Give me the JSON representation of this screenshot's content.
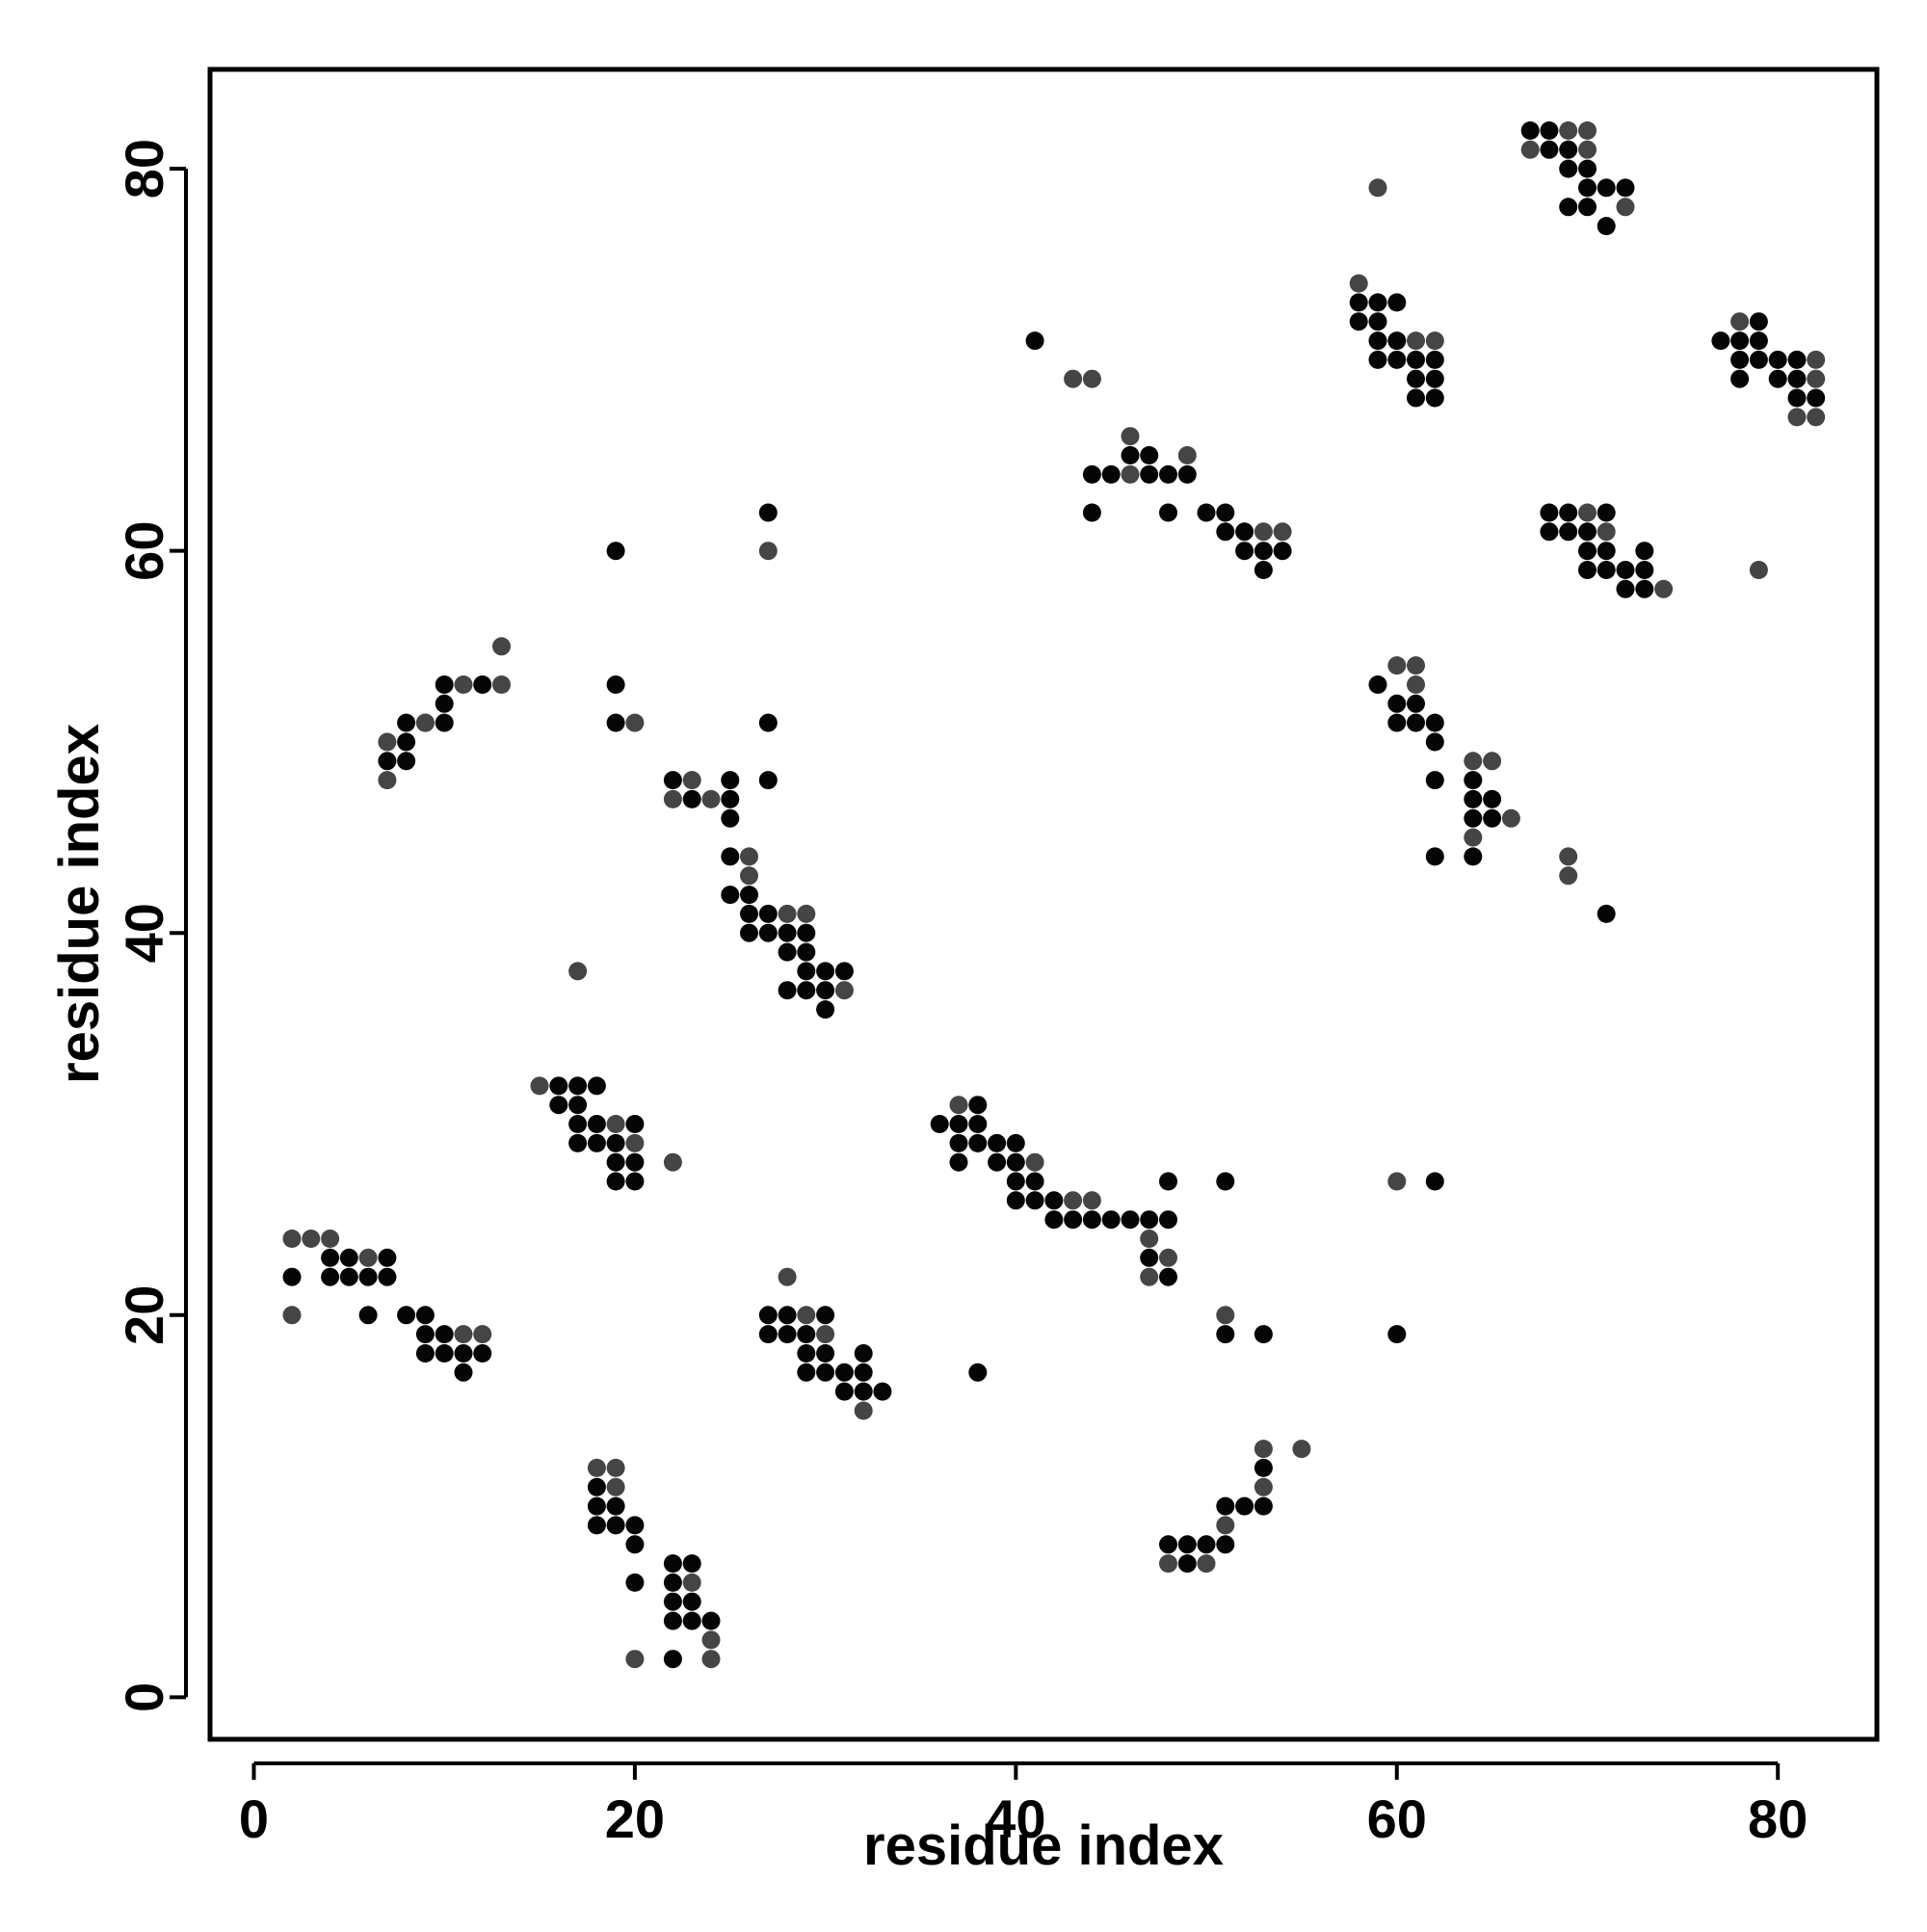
{
  "chart_data": {
    "type": "scatter",
    "title": "",
    "xlabel": "residue index",
    "ylabel": "residue index",
    "xlim": [
      -2.3,
      85.2
    ],
    "ylim": [
      -2.2,
      85.2
    ],
    "x_ticks": [
      0,
      20,
      40,
      60,
      80
    ],
    "y_ticks": [
      0,
      20,
      40,
      60,
      80
    ],
    "grid": false,
    "legend": "none",
    "colors": {
      "dark": "#050505",
      "mid": "#454545"
    },
    "series": [
      {
        "color_key": "dark",
        "points": [
          [
            2,
            22
          ],
          [
            4,
            22
          ],
          [
            4,
            23
          ],
          [
            5,
            23
          ],
          [
            5,
            22
          ],
          [
            6,
            22
          ],
          [
            7,
            23
          ],
          [
            7,
            22
          ],
          [
            6,
            20
          ],
          [
            8,
            20
          ],
          [
            9,
            20
          ],
          [
            9,
            19
          ],
          [
            9,
            18
          ],
          [
            10,
            19
          ],
          [
            10,
            18
          ],
          [
            11,
            18
          ],
          [
            11,
            17
          ],
          [
            12,
            18
          ],
          [
            16,
            32
          ],
          [
            16,
            31
          ],
          [
            17,
            32
          ],
          [
            17,
            31
          ],
          [
            17,
            30
          ],
          [
            17,
            29
          ],
          [
            18,
            32
          ],
          [
            18,
            30
          ],
          [
            18,
            29
          ],
          [
            19,
            29
          ],
          [
            19,
            28
          ],
          [
            19,
            27
          ],
          [
            20,
            30
          ],
          [
            20,
            28
          ],
          [
            20,
            27
          ],
          [
            18,
            11
          ],
          [
            18,
            10
          ],
          [
            18,
            9
          ],
          [
            19,
            10
          ],
          [
            19,
            9
          ],
          [
            20,
            9
          ],
          [
            20,
            8
          ],
          [
            20,
            6
          ],
          [
            22,
            7
          ],
          [
            22,
            6
          ],
          [
            22,
            5
          ],
          [
            22,
            4
          ],
          [
            22,
            2
          ],
          [
            23,
            7
          ],
          [
            23,
            5
          ],
          [
            23,
            4
          ],
          [
            24,
            4
          ],
          [
            27,
            20
          ],
          [
            27,
            19
          ],
          [
            28,
            20
          ],
          [
            28,
            19
          ],
          [
            29,
            19
          ],
          [
            29,
            18
          ],
          [
            29,
            17
          ],
          [
            30,
            20
          ],
          [
            30,
            18
          ],
          [
            30,
            17
          ],
          [
            31,
            17
          ],
          [
            31,
            16
          ],
          [
            32,
            18
          ],
          [
            32,
            17
          ],
          [
            32,
            16
          ],
          [
            33,
            16
          ],
          [
            8,
            51
          ],
          [
            8,
            50
          ],
          [
            8,
            49
          ],
          [
            9,
            51
          ],
          [
            10,
            53
          ],
          [
            10,
            52
          ],
          [
            10,
            51
          ],
          [
            12,
            53
          ],
          [
            7,
            49
          ],
          [
            19,
            60
          ],
          [
            19,
            53
          ],
          [
            19,
            51
          ],
          [
            27,
            62
          ],
          [
            27,
            51
          ],
          [
            27,
            48
          ],
          [
            22,
            48
          ],
          [
            23,
            47
          ],
          [
            25,
            48
          ],
          [
            25,
            47
          ],
          [
            25,
            46
          ],
          [
            25,
            44
          ],
          [
            25,
            42
          ],
          [
            26,
            42
          ],
          [
            26,
            41
          ],
          [
            26,
            40
          ],
          [
            27,
            41
          ],
          [
            27,
            40
          ],
          [
            28,
            40
          ],
          [
            28,
            39
          ],
          [
            29,
            40
          ],
          [
            29,
            39
          ],
          [
            29,
            38
          ],
          [
            29,
            37
          ],
          [
            30,
            38
          ],
          [
            30,
            37
          ],
          [
            30,
            36
          ],
          [
            31,
            38
          ],
          [
            28,
            37
          ],
          [
            36,
            30
          ],
          [
            37,
            30
          ],
          [
            37,
            29
          ],
          [
            37,
            28
          ],
          [
            38,
            31
          ],
          [
            38,
            30
          ],
          [
            38,
            29
          ],
          [
            39,
            29
          ],
          [
            39,
            28
          ],
          [
            40,
            29
          ],
          [
            40,
            28
          ],
          [
            40,
            27
          ],
          [
            40,
            26
          ],
          [
            41,
            27
          ],
          [
            41,
            26
          ],
          [
            42,
            26
          ],
          [
            42,
            25
          ],
          [
            43,
            25
          ],
          [
            44,
            25
          ],
          [
            45,
            25
          ],
          [
            46,
            25
          ],
          [
            47,
            25
          ],
          [
            47,
            23
          ],
          [
            48,
            27
          ],
          [
            48,
            25
          ],
          [
            48,
            22
          ],
          [
            51,
            27
          ],
          [
            38,
            17
          ],
          [
            51,
            19
          ],
          [
            53,
            19
          ],
          [
            60,
            19
          ],
          [
            62,
            27
          ],
          [
            48,
            8
          ],
          [
            49,
            8
          ],
          [
            49,
            7
          ],
          [
            50,
            8
          ],
          [
            51,
            10
          ],
          [
            51,
            8
          ],
          [
            52,
            10
          ],
          [
            53,
            12
          ],
          [
            53,
            10
          ],
          [
            44,
            64
          ],
          [
            44,
            62
          ],
          [
            46,
            65
          ],
          [
            47,
            65
          ],
          [
            47,
            64
          ],
          [
            48,
            64
          ],
          [
            48,
            62
          ],
          [
            49,
            64
          ],
          [
            50,
            62
          ],
          [
            51,
            62
          ],
          [
            51,
            61
          ],
          [
            52,
            61
          ],
          [
            52,
            60
          ],
          [
            53,
            60
          ],
          [
            53,
            59
          ],
          [
            54,
            60
          ],
          [
            41,
            71
          ],
          [
            45,
            64
          ],
          [
            58,
            73
          ],
          [
            58,
            72
          ],
          [
            59,
            73
          ],
          [
            59,
            72
          ],
          [
            59,
            71
          ],
          [
            59,
            70
          ],
          [
            60,
            73
          ],
          [
            60,
            71
          ],
          [
            60,
            70
          ],
          [
            61,
            70
          ],
          [
            61,
            69
          ],
          [
            62,
            69
          ],
          [
            62,
            68
          ],
          [
            61,
            68
          ],
          [
            62,
            70
          ],
          [
            60,
            52
          ],
          [
            60,
            51
          ],
          [
            61,
            52
          ],
          [
            61,
            51
          ],
          [
            62,
            51
          ],
          [
            62,
            50
          ],
          [
            62,
            48
          ],
          [
            62,
            44
          ],
          [
            64,
            48
          ],
          [
            64,
            47
          ],
          [
            64,
            46
          ],
          [
            64,
            44
          ],
          [
            65,
            47
          ],
          [
            65,
            46
          ],
          [
            59,
            53
          ],
          [
            67,
            82
          ],
          [
            68,
            82
          ],
          [
            68,
            81
          ],
          [
            69,
            81
          ],
          [
            69,
            80
          ],
          [
            69,
            78
          ],
          [
            70,
            80
          ],
          [
            70,
            79
          ],
          [
            70,
            78
          ],
          [
            71,
            79
          ],
          [
            71,
            77
          ],
          [
            72,
            79
          ],
          [
            68,
            62
          ],
          [
            68,
            61
          ],
          [
            69,
            62
          ],
          [
            69,
            61
          ],
          [
            70,
            61
          ],
          [
            70,
            60
          ],
          [
            70,
            59
          ],
          [
            71,
            62
          ],
          [
            71,
            60
          ],
          [
            71,
            59
          ],
          [
            72,
            59
          ],
          [
            72,
            58
          ],
          [
            73,
            60
          ],
          [
            73,
            59
          ],
          [
            73,
            58
          ],
          [
            71,
            41
          ],
          [
            77,
            71
          ],
          [
            78,
            71
          ],
          [
            78,
            70
          ],
          [
            78,
            69
          ],
          [
            79,
            72
          ],
          [
            79,
            71
          ],
          [
            79,
            70
          ],
          [
            80,
            70
          ],
          [
            81,
            70
          ],
          [
            81,
            69
          ],
          [
            81,
            68
          ],
          [
            82,
            68
          ],
          [
            80,
            69
          ]
        ]
      },
      {
        "color_key": "mid",
        "points": [
          [
            2,
            24
          ],
          [
            3,
            24
          ],
          [
            4,
            24
          ],
          [
            6,
            23
          ],
          [
            2,
            20
          ],
          [
            11,
            19
          ],
          [
            12,
            19
          ],
          [
            15,
            32
          ],
          [
            17,
            38
          ],
          [
            18,
            12
          ],
          [
            19,
            12
          ],
          [
            19,
            11
          ],
          [
            19,
            30
          ],
          [
            20,
            29
          ],
          [
            22,
            28
          ],
          [
            20,
            2
          ],
          [
            23,
            6
          ],
          [
            24,
            3
          ],
          [
            24,
            2
          ],
          [
            7,
            50
          ],
          [
            7,
            48
          ],
          [
            9,
            51
          ],
          [
            11,
            53
          ],
          [
            13,
            55
          ],
          [
            13,
            53
          ],
          [
            20,
            51
          ],
          [
            27,
            60
          ],
          [
            22,
            47
          ],
          [
            23,
            48
          ],
          [
            24,
            47
          ],
          [
            26,
            44
          ],
          [
            26,
            43
          ],
          [
            28,
            41
          ],
          [
            29,
            41
          ],
          [
            31,
            37
          ],
          [
            28,
            22
          ],
          [
            29,
            20
          ],
          [
            30,
            19
          ],
          [
            32,
            15
          ],
          [
            37,
            31
          ],
          [
            41,
            28
          ],
          [
            43,
            26
          ],
          [
            44,
            26
          ],
          [
            47,
            24
          ],
          [
            47,
            22
          ],
          [
            48,
            23
          ],
          [
            51,
            20
          ],
          [
            48,
            7
          ],
          [
            50,
            7
          ],
          [
            51,
            9
          ],
          [
            53,
            13
          ],
          [
            53,
            11
          ],
          [
            55,
            13
          ],
          [
            60,
            27
          ],
          [
            43,
            69
          ],
          [
            44,
            69
          ],
          [
            46,
            66
          ],
          [
            46,
            64
          ],
          [
            49,
            65
          ],
          [
            53,
            61
          ],
          [
            54,
            61
          ],
          [
            59,
            79
          ],
          [
            58,
            74
          ],
          [
            61,
            71
          ],
          [
            62,
            71
          ],
          [
            61,
            54
          ],
          [
            61,
            53
          ],
          [
            60,
            54
          ],
          [
            64,
            49
          ],
          [
            65,
            49
          ],
          [
            64,
            45
          ],
          [
            66,
            46
          ],
          [
            69,
            44
          ],
          [
            69,
            43
          ],
          [
            67,
            81
          ],
          [
            69,
            82
          ],
          [
            70,
            82
          ],
          [
            70,
            81
          ],
          [
            72,
            78
          ],
          [
            70,
            62
          ],
          [
            71,
            61
          ],
          [
            74,
            58
          ],
          [
            78,
            72
          ],
          [
            82,
            70
          ],
          [
            82,
            69
          ],
          [
            81,
            67
          ],
          [
            82,
            67
          ],
          [
            79,
            59
          ]
        ]
      }
    ]
  }
}
